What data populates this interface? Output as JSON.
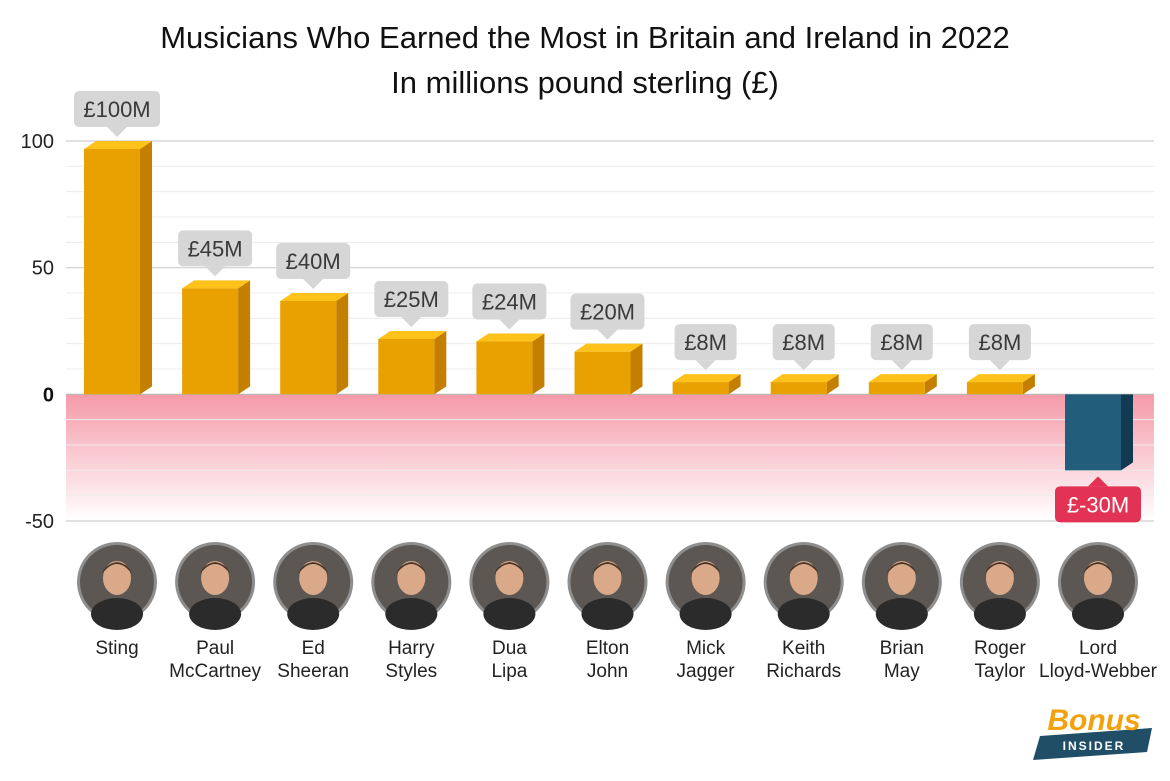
{
  "chart_data": {
    "type": "bar",
    "title": "Musicians Who Earned the Most in Britain and Ireland in 2022",
    "subtitle": "In millions pound sterling (£)",
    "categories": [
      "Sting",
      "Paul McCartney",
      "Ed Sheeran",
      "Harry Styles",
      "Dua Lipa",
      "Elton John",
      "Mick Jagger",
      "Keith Richards",
      "Brian May",
      "Roger Taylor",
      "Lord Lloyd-Webber"
    ],
    "category_lines": [
      [
        "Sting"
      ],
      [
        "Paul",
        "McCartney"
      ],
      [
        "Ed",
        "Sheeran"
      ],
      [
        "Harry",
        "Styles"
      ],
      [
        "Dua",
        "Lipa"
      ],
      [
        "Elton",
        "John"
      ],
      [
        "Mick",
        "Jagger"
      ],
      [
        "Keith",
        "Richards"
      ],
      [
        "Brian",
        "May"
      ],
      [
        "Roger",
        "Taylor"
      ],
      [
        "Lord",
        "Lloyd-Webber"
      ]
    ],
    "values": [
      100,
      45,
      40,
      25,
      24,
      20,
      8,
      8,
      8,
      8,
      -30
    ],
    "data_labels": [
      "£100M",
      "£45M",
      "£40M",
      "£25M",
      "£24M",
      "£20M",
      "£8M",
      "£8M",
      "£8M",
      "£8M",
      "£-30M"
    ],
    "ylim": [
      -50,
      100
    ],
    "yticks": [
      -50,
      0,
      50,
      100
    ],
    "grid": true,
    "colors": {
      "positive": "#e8a100",
      "positive_side": "#c47f00",
      "positive_top": "#ffc21a",
      "negative": "#235d7c",
      "negative_side": "#123a52",
      "label_box": "#d6d6d6",
      "label_box_negative": "#e23355",
      "negative_zone": "#f7a8b4"
    }
  },
  "logo": {
    "brand": "Bonus",
    "tagline": "INSIDER"
  }
}
